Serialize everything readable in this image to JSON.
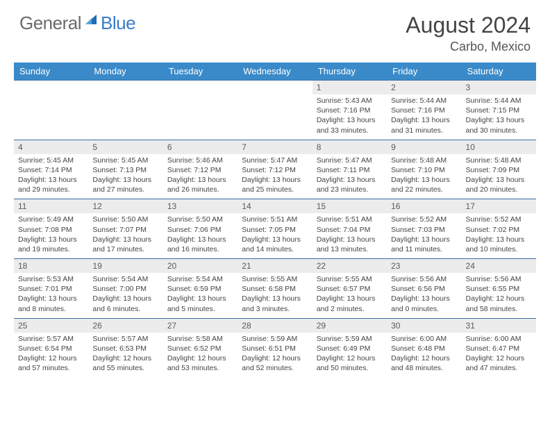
{
  "brand": {
    "part1": "General",
    "part2": "Blue"
  },
  "title": "August 2024",
  "location": "Carbo, Mexico",
  "colors": {
    "header_bg": "#3a8ac9",
    "header_text": "#ffffff",
    "daynum_bg": "#ececec",
    "week_border": "#3a6ea5",
    "logo_blue": "#3a7cc4",
    "logo_gray": "#6a6a6a"
  },
  "day_names": [
    "Sunday",
    "Monday",
    "Tuesday",
    "Wednesday",
    "Thursday",
    "Friday",
    "Saturday"
  ],
  "weeks": [
    [
      null,
      null,
      null,
      null,
      {
        "n": "1",
        "sr": "5:43 AM",
        "ss": "7:16 PM",
        "dl": "13 hours and 33 minutes."
      },
      {
        "n": "2",
        "sr": "5:44 AM",
        "ss": "7:16 PM",
        "dl": "13 hours and 31 minutes."
      },
      {
        "n": "3",
        "sr": "5:44 AM",
        "ss": "7:15 PM",
        "dl": "13 hours and 30 minutes."
      }
    ],
    [
      {
        "n": "4",
        "sr": "5:45 AM",
        "ss": "7:14 PM",
        "dl": "13 hours and 29 minutes."
      },
      {
        "n": "5",
        "sr": "5:45 AM",
        "ss": "7:13 PM",
        "dl": "13 hours and 27 minutes."
      },
      {
        "n": "6",
        "sr": "5:46 AM",
        "ss": "7:12 PM",
        "dl": "13 hours and 26 minutes."
      },
      {
        "n": "7",
        "sr": "5:47 AM",
        "ss": "7:12 PM",
        "dl": "13 hours and 25 minutes."
      },
      {
        "n": "8",
        "sr": "5:47 AM",
        "ss": "7:11 PM",
        "dl": "13 hours and 23 minutes."
      },
      {
        "n": "9",
        "sr": "5:48 AM",
        "ss": "7:10 PM",
        "dl": "13 hours and 22 minutes."
      },
      {
        "n": "10",
        "sr": "5:48 AM",
        "ss": "7:09 PM",
        "dl": "13 hours and 20 minutes."
      }
    ],
    [
      {
        "n": "11",
        "sr": "5:49 AM",
        "ss": "7:08 PM",
        "dl": "13 hours and 19 minutes."
      },
      {
        "n": "12",
        "sr": "5:50 AM",
        "ss": "7:07 PM",
        "dl": "13 hours and 17 minutes."
      },
      {
        "n": "13",
        "sr": "5:50 AM",
        "ss": "7:06 PM",
        "dl": "13 hours and 16 minutes."
      },
      {
        "n": "14",
        "sr": "5:51 AM",
        "ss": "7:05 PM",
        "dl": "13 hours and 14 minutes."
      },
      {
        "n": "15",
        "sr": "5:51 AM",
        "ss": "7:04 PM",
        "dl": "13 hours and 13 minutes."
      },
      {
        "n": "16",
        "sr": "5:52 AM",
        "ss": "7:03 PM",
        "dl": "13 hours and 11 minutes."
      },
      {
        "n": "17",
        "sr": "5:52 AM",
        "ss": "7:02 PM",
        "dl": "13 hours and 10 minutes."
      }
    ],
    [
      {
        "n": "18",
        "sr": "5:53 AM",
        "ss": "7:01 PM",
        "dl": "13 hours and 8 minutes."
      },
      {
        "n": "19",
        "sr": "5:54 AM",
        "ss": "7:00 PM",
        "dl": "13 hours and 6 minutes."
      },
      {
        "n": "20",
        "sr": "5:54 AM",
        "ss": "6:59 PM",
        "dl": "13 hours and 5 minutes."
      },
      {
        "n": "21",
        "sr": "5:55 AM",
        "ss": "6:58 PM",
        "dl": "13 hours and 3 minutes."
      },
      {
        "n": "22",
        "sr": "5:55 AM",
        "ss": "6:57 PM",
        "dl": "13 hours and 2 minutes."
      },
      {
        "n": "23",
        "sr": "5:56 AM",
        "ss": "6:56 PM",
        "dl": "13 hours and 0 minutes."
      },
      {
        "n": "24",
        "sr": "5:56 AM",
        "ss": "6:55 PM",
        "dl": "12 hours and 58 minutes."
      }
    ],
    [
      {
        "n": "25",
        "sr": "5:57 AM",
        "ss": "6:54 PM",
        "dl": "12 hours and 57 minutes."
      },
      {
        "n": "26",
        "sr": "5:57 AM",
        "ss": "6:53 PM",
        "dl": "12 hours and 55 minutes."
      },
      {
        "n": "27",
        "sr": "5:58 AM",
        "ss": "6:52 PM",
        "dl": "12 hours and 53 minutes."
      },
      {
        "n": "28",
        "sr": "5:59 AM",
        "ss": "6:51 PM",
        "dl": "12 hours and 52 minutes."
      },
      {
        "n": "29",
        "sr": "5:59 AM",
        "ss": "6:49 PM",
        "dl": "12 hours and 50 minutes."
      },
      {
        "n": "30",
        "sr": "6:00 AM",
        "ss": "6:48 PM",
        "dl": "12 hours and 48 minutes."
      },
      {
        "n": "31",
        "sr": "6:00 AM",
        "ss": "6:47 PM",
        "dl": "12 hours and 47 minutes."
      }
    ]
  ],
  "labels": {
    "sunrise": "Sunrise:",
    "sunset": "Sunset:",
    "daylight": "Daylight:"
  }
}
